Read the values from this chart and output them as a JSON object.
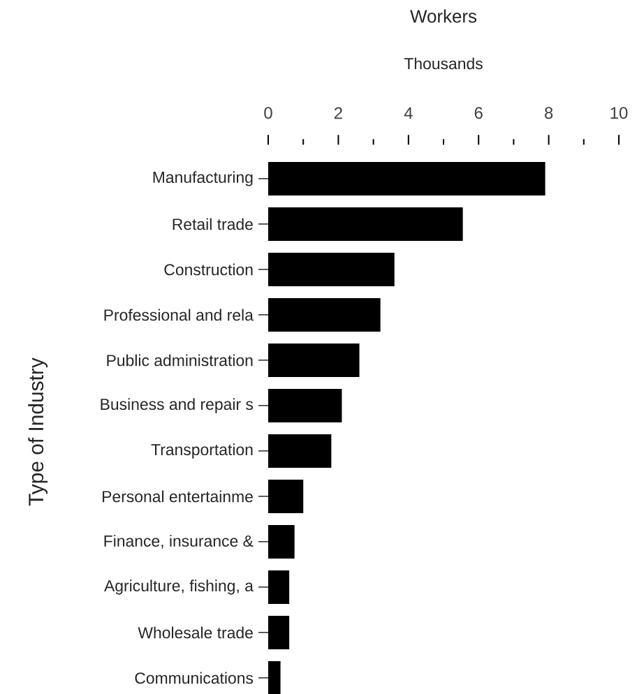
{
  "chart_data": {
    "type": "bar",
    "orientation": "horizontal",
    "title": "Workers",
    "xlabel": "Thousands",
    "ylabel": "Type of Industry",
    "categories": [
      "Manufacturing",
      "Retail trade",
      "Construction",
      "Professional and rela",
      "Public administration",
      "Business and repair s",
      "Transportation",
      "Personal entertainme",
      "Finance, insurance &",
      "Agriculture, fishing, a",
      "Wholesale trade",
      "Communications"
    ],
    "values": [
      7.9,
      5.55,
      3.6,
      3.2,
      2.6,
      2.1,
      1.8,
      1.0,
      0.75,
      0.6,
      0.6,
      0.35
    ],
    "color": "#000000",
    "xlim": [
      0,
      10
    ],
    "xticks": [
      0,
      {
        "value": 1,
        "label": null
      },
      2,
      {
        "value": 3,
        "label": null
      },
      4,
      {
        "value": 5,
        "label": null
      },
      6,
      {
        "value": 7,
        "label": null
      },
      8,
      {
        "value": 9,
        "label": null
      },
      10
    ]
  }
}
